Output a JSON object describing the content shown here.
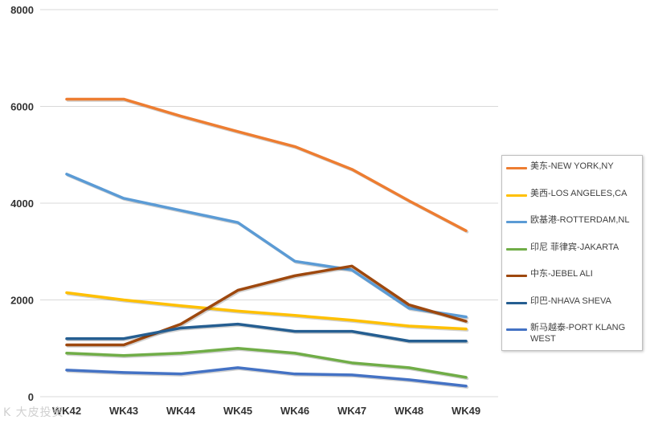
{
  "chart_data": {
    "type": "line",
    "title": "",
    "xlabel": "",
    "ylabel": "",
    "ylim": [
      0,
      8000
    ],
    "yticks": [
      "0",
      "2000",
      "4000",
      "6000",
      "8000"
    ],
    "yticks_values": [
      0,
      2000,
      4000,
      6000,
      8000
    ],
    "categories": [
      "WK42",
      "WK43",
      "WK44",
      "WK45",
      "WK46",
      "WK47",
      "WK48",
      "WK49"
    ],
    "grid": true,
    "legend_position": "right",
    "series": [
      {
        "name": "美东-NEW YORK,NY",
        "color": "#ED7D31",
        "values": [
          6150,
          6150,
          5800,
          5480,
          5170,
          4700,
          4050,
          3430
        ]
      },
      {
        "name": "美西-LOS ANGELES,CA",
        "color": "#FFC000",
        "values": [
          2150,
          2000,
          1880,
          1770,
          1680,
          1580,
          1460,
          1400
        ]
      },
      {
        "name": "欧基港-ROTTERDAM,NL",
        "color": "#5B9BD5",
        "values": [
          4600,
          4100,
          3850,
          3600,
          2800,
          2620,
          1830,
          1650
        ]
      },
      {
        "name": "印尼 菲律宾-JAKARTA",
        "color": "#70AD47",
        "values": [
          900,
          850,
          900,
          1000,
          900,
          700,
          600,
          400
        ]
      },
      {
        "name": "中东-JEBEL ALI",
        "color": "#9E480E",
        "values": [
          1070,
          1070,
          1500,
          2200,
          2500,
          2700,
          1900,
          1560
        ]
      },
      {
        "name": "印巴-NHAVA SHEVA",
        "color": "#255E91",
        "values": [
          1200,
          1200,
          1420,
          1500,
          1350,
          1350,
          1150,
          1150
        ]
      },
      {
        "name": "新马越泰-PORT KLANG WEST",
        "color": "#4472C4",
        "values": [
          550,
          500,
          470,
          600,
          470,
          450,
          350,
          220
        ]
      }
    ]
  },
  "watermark": "K 大皮投资"
}
